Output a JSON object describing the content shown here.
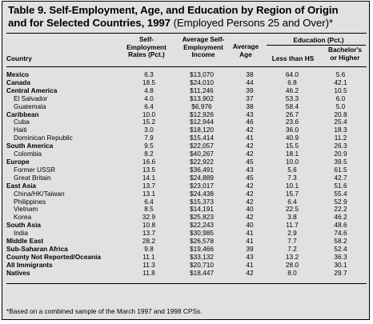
{
  "title": {
    "line1": "Table 9. Self-Employment, Age, and Education by Region of Origin",
    "line2": "and for Selected Countries, 1997",
    "suffix": "(Employed Persons 25 and Over)*"
  },
  "headers": {
    "country": "Country",
    "self_emp": [
      "Self-",
      "Employment",
      "Rates (Pct.)"
    ],
    "income": [
      "Average Self-",
      "Employment",
      "Income"
    ],
    "age": [
      "Average",
      "Age"
    ],
    "education_group": "Education (Pct.)",
    "less_hs": "Less than HS",
    "bachelors": [
      "Bachelor's",
      "or Higher"
    ]
  },
  "rows": [
    {
      "name": "Mexico",
      "type": "region",
      "rate": "6.3",
      "income": "$13,070",
      "age": "38",
      "lhs": "64.0",
      "ba": "5.6"
    },
    {
      "name": "Canada",
      "type": "region",
      "rate": "18.5",
      "income": "$24,010",
      "age": "44",
      "lhs": "6.8",
      "ba": "42.1"
    },
    {
      "name": "Central America",
      "type": "region",
      "rate": "4.8",
      "income": "$11,246",
      "age": "39",
      "lhs": "46.2",
      "ba": "10.5"
    },
    {
      "name": "El Salvador",
      "type": "country",
      "rate": "4.0",
      "income": "$13,902",
      "age": "37",
      "lhs": "53.3",
      "ba": "6.0"
    },
    {
      "name": "Guatemala",
      "type": "country",
      "rate": "6.4",
      "income": "$6,976",
      "age": "38",
      "lhs": "58.4",
      "ba": "5.0"
    },
    {
      "name": "Caribbean",
      "type": "region",
      "rate": "10.0",
      "income": "$12,926",
      "age": "43",
      "lhs": "26.7",
      "ba": "20.8"
    },
    {
      "name": "Cuba",
      "type": "country",
      "rate": "15.2",
      "income": "$12,944",
      "age": "46",
      "lhs": "23.6",
      "ba": "25.4"
    },
    {
      "name": "Haiti",
      "type": "country",
      "rate": "3.0",
      "income": "$18,120",
      "age": "42",
      "lhs": "36.0",
      "ba": "18.3"
    },
    {
      "name": "Dominican Republic",
      "type": "country",
      "rate": "7.9",
      "income": "$15,414",
      "age": "41",
      "lhs": "40.9",
      "ba": "11.2"
    },
    {
      "name": "South America",
      "type": "region",
      "rate": "9.5",
      "income": "$22,057",
      "age": "42",
      "lhs": "15.5",
      "ba": "26.3"
    },
    {
      "name": "Colombia",
      "type": "country",
      "rate": "8.2",
      "income": "$40,267",
      "age": "42",
      "lhs": "18.1",
      "ba": "20.9"
    },
    {
      "name": "Europe",
      "type": "region",
      "rate": "16.6",
      "income": "$22,922",
      "age": "45",
      "lhs": "10.0",
      "ba": "39.5"
    },
    {
      "name": "Former USSR",
      "type": "country",
      "rate": "13.5",
      "income": "$36,491",
      "age": "43",
      "lhs": "5.6",
      "ba": "61.5"
    },
    {
      "name": "Great Britain",
      "type": "country",
      "rate": "14.1",
      "income": "$24,889",
      "age": "45",
      "lhs": "7.3",
      "ba": "42.7"
    },
    {
      "name": "East Asia",
      "type": "region",
      "rate": "13.7",
      "income": "$23,017",
      "age": "42",
      "lhs": "10.1",
      "ba": "51.6"
    },
    {
      "name": "China/HK/Taiwan",
      "type": "country",
      "rate": "13.1",
      "income": "$24,438",
      "age": "42",
      "lhs": "15.7",
      "ba": "55.4"
    },
    {
      "name": "Philippines",
      "type": "country",
      "rate": "6.4",
      "income": "$15,373",
      "age": "42",
      "lhs": "6.4",
      "ba": "52.9"
    },
    {
      "name": "Vietnam",
      "type": "country",
      "rate": "8.5",
      "income": "$14,191",
      "age": "40",
      "lhs": "22.5",
      "ba": "22.2"
    },
    {
      "name": "Korea",
      "type": "country",
      "rate": "32.9",
      "income": "$25,823",
      "age": "42",
      "lhs": "3.8",
      "ba": "46.2"
    },
    {
      "name": "South Asia",
      "type": "region",
      "rate": "10.8",
      "income": "$22,243",
      "age": "40",
      "lhs": "11.7",
      "ba": "48.6"
    },
    {
      "name": "India",
      "type": "country",
      "rate": "13.7",
      "income": "$30,985",
      "age": "41",
      "lhs": "2.9",
      "ba": "74.6"
    },
    {
      "name": "Middle East",
      "type": "region",
      "rate": "28.2",
      "income": "$26,578",
      "age": "41",
      "lhs": "7.7",
      "ba": "58.2"
    },
    {
      "name": "Sub-Saharan Africa",
      "type": "region",
      "rate": "9.8",
      "income": "$19,466",
      "age": "39",
      "lhs": "7.2",
      "ba": "52.4"
    },
    {
      "name": "County Not Reported/Oceania",
      "type": "region",
      "rate": "11.1",
      "income": "$33,132",
      "age": "43",
      "lhs": "13.2",
      "ba": "36.3"
    },
    {
      "name": "All Immigrants",
      "type": "region",
      "rate": "11.3",
      "income": "$20,710",
      "age": "41",
      "lhs": "28.0",
      "ba": "30.1"
    },
    {
      "name": "Natives",
      "type": "region",
      "rate": "11.8",
      "income": "$18,447",
      "age": "42",
      "lhs": "8.0",
      "ba": "29.7"
    }
  ],
  "footnote": "*Based on a combined sample of the March 1997 and 1998 CPSs."
}
